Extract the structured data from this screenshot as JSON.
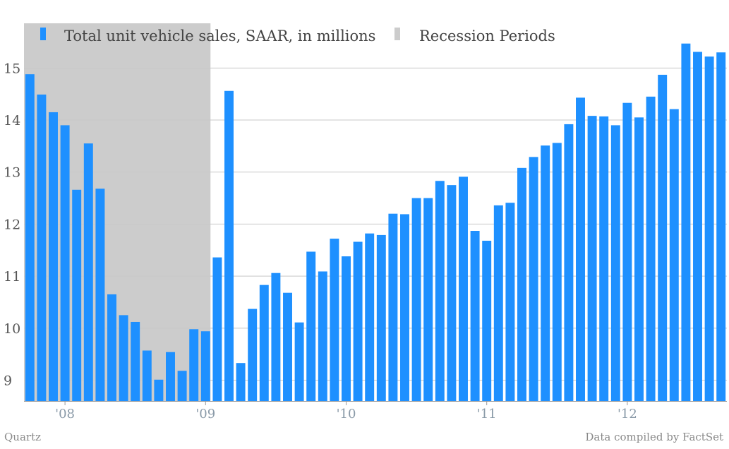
{
  "chart_data": {
    "type": "bar",
    "title": "",
    "xlabel": "",
    "ylabel": "",
    "ylim": [
      8.6,
      15.9
    ],
    "yticks": [
      9,
      10,
      11,
      12,
      13,
      14,
      15
    ],
    "x_tick_labels": [
      {
        "label": "'08",
        "index": 3
      },
      {
        "label": "'09",
        "index": 15
      },
      {
        "label": "'10",
        "index": 27
      },
      {
        "label": "'11",
        "index": 39
      },
      {
        "label": "'12",
        "index": 51
      }
    ],
    "grid": true,
    "legend_position": "top-left",
    "series": [
      {
        "name": "Total unit vehicle sales, SAAR, in millions",
        "color": "#1e90ff",
        "values": [
          14.88,
          14.49,
          14.15,
          13.9,
          12.66,
          13.55,
          12.68,
          10.65,
          10.25,
          10.12,
          9.57,
          9.01,
          9.54,
          9.18,
          9.98,
          9.94,
          11.36,
          14.56,
          9.33,
          10.37,
          10.83,
          11.06,
          10.68,
          10.11,
          11.47,
          11.09,
          11.72,
          11.38,
          11.66,
          11.82,
          11.79,
          12.2,
          12.19,
          12.5,
          12.5,
          12.83,
          12.75,
          12.91,
          11.87,
          11.68,
          12.36,
          12.41,
          13.08,
          13.29,
          13.51,
          13.56,
          13.92,
          14.43,
          14.08,
          14.07,
          13.9,
          14.33,
          14.05,
          14.45,
          14.87,
          14.21,
          15.47,
          15.31,
          15.22,
          15.3
        ]
      }
    ],
    "recession": {
      "name": "Recession Periods",
      "color": "#cccccc",
      "start_index": 0,
      "end_index": 15
    }
  },
  "footer": {
    "source_left": "Quartz",
    "source_right": "Data compiled by FactSet"
  }
}
